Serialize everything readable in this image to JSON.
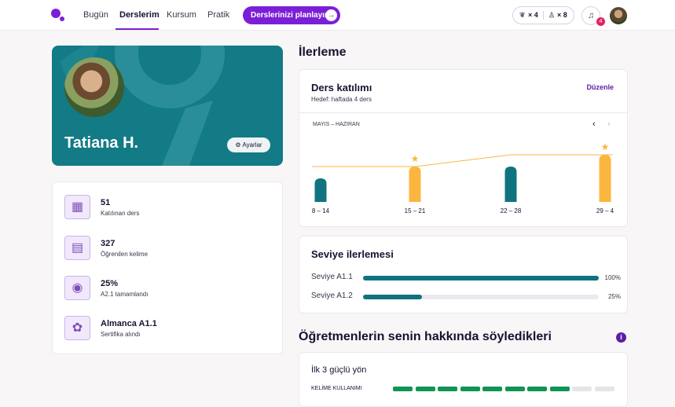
{
  "nav": {
    "links": [
      "Bugün",
      "Derslerim",
      "Kursum",
      "Pratik"
    ],
    "cta": "Derslerinizi planlayın",
    "streak": "× 4",
    "friends": "× 8",
    "notifications": "4"
  },
  "profile": {
    "name": "Tatiana H.",
    "settings": "Ayarlar"
  },
  "stats": [
    {
      "value": "51",
      "label": "Katılınan ders"
    },
    {
      "value": "327",
      "label": "Öğrenilen kelime"
    },
    {
      "value": "25%",
      "label": "A2.1 tamamlandı"
    },
    {
      "value": "Almanca A1.1",
      "label": "Sertifika alındı"
    }
  ],
  "progress": {
    "title": "İlerleme",
    "attendance": {
      "title": "Ders katılımı",
      "goal_text": "Hedef: haftada 4 ders",
      "edit": "Düzenle",
      "period": "MAYIS – HAZIRAN",
      "chart_data": {
        "type": "bar",
        "categories": [
          "8 – 14",
          "15 – 21",
          "22 – 28",
          "29 – 4"
        ],
        "values": [
          2,
          3,
          3,
          4
        ],
        "goal": [
          3,
          3,
          4,
          4
        ],
        "color": "#0f7480",
        "met_color": "#fbb63f",
        "goal_color": "#f8b64a"
      }
    },
    "levels": {
      "title": "Seviye ilerlemesi",
      "rows": [
        {
          "label": "Seviye A1.1",
          "value": 100,
          "value_label": "100%"
        },
        {
          "label": "Seviye A1.2",
          "value": 25,
          "value_label": "25%"
        }
      ]
    }
  },
  "teachers": {
    "title": "Öğretmenlerin senin hakkında söyledikleri",
    "strengths_title": "İlk 3 güçlü yön",
    "items": [
      {
        "label": "KELİME KULLANIMI",
        "value": 8,
        "max": 10
      }
    ]
  }
}
